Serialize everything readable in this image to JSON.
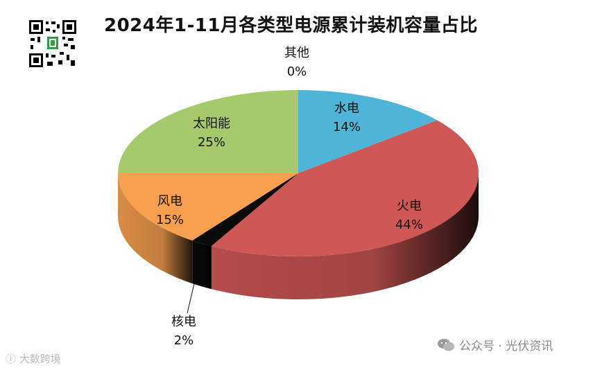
{
  "title": "2024年1-11月各类型电源累计装机容量占比",
  "watermark_left": "大数跨境",
  "watermark_right": "公众号 · 光伏资讯",
  "chart_data": {
    "type": "pie",
    "title": "2024年1-11月各类型电源累计装机容量占比",
    "style": "3d",
    "slices": [
      {
        "label": "水电",
        "value": 14,
        "display": "14%",
        "color": "#4fb5d6"
      },
      {
        "label": "火电",
        "value": 44,
        "display": "44%",
        "color": "#cf5756"
      },
      {
        "label": "核电",
        "value": 2,
        "display": "2%",
        "color": "#0a0a0a"
      },
      {
        "label": "风电",
        "value": 15,
        "display": "15%",
        "color": "#f8a04e"
      },
      {
        "label": "太阳能",
        "value": 25,
        "display": "25%",
        "color": "#a6c96b"
      },
      {
        "label": "其他",
        "value": 0,
        "display": "0%",
        "color": "#7f6aa6"
      }
    ]
  }
}
